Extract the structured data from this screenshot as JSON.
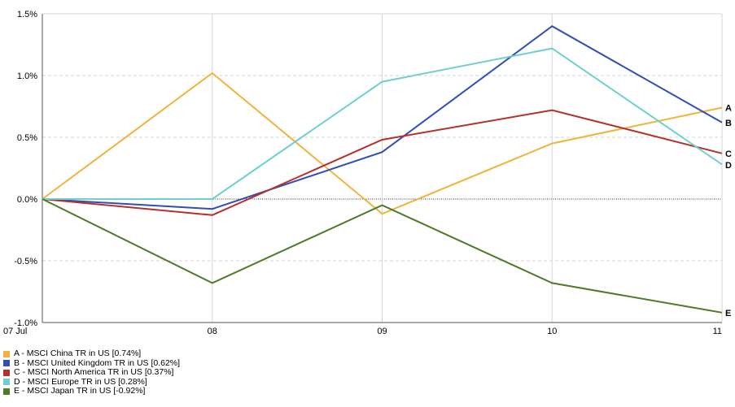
{
  "chart_data": {
    "type": "line",
    "x": [
      "07 Jul",
      "08",
      "09",
      "10",
      "11"
    ],
    "ylim": [
      -1.0,
      1.5
    ],
    "yticks": [
      "1.5%",
      "1.0%",
      "0.5%",
      "0.0%",
      "-0.5%",
      "-1.0%"
    ],
    "ytick_values": [
      1.5,
      1.0,
      0.5,
      0.0,
      -0.5,
      -1.0
    ],
    "grid": true,
    "legend_placement": "bottom-left",
    "series": [
      {
        "name": "A - MSCI China TR in US [0.74%]",
        "label": "A",
        "color": "#f0b43c",
        "values": [
          0.0,
          1.02,
          -0.12,
          0.45,
          0.74
        ]
      },
      {
        "name": "B - MSCI United Kingdom TR in US [0.62%]",
        "label": "B",
        "color": "#2f4fb5",
        "values": [
          0.0,
          -0.08,
          0.38,
          1.4,
          0.62
        ]
      },
      {
        "name": "C - MSCI North America TR in US [0.37%]",
        "label": "C",
        "color": "#b5302b",
        "values": [
          0.0,
          -0.13,
          0.48,
          0.72,
          0.37
        ]
      },
      {
        "name": "D - MSCI Europe TR in US [0.28%]",
        "label": "D",
        "color": "#6fcfcf",
        "values": [
          0.0,
          0.0,
          0.95,
          1.22,
          0.28
        ]
      },
      {
        "name": "E - MSCI Japan TR in US [-0.92%]",
        "label": "E",
        "color": "#4e7a2a",
        "values": [
          0.0,
          -0.68,
          -0.05,
          -0.68,
          -0.92
        ]
      }
    ]
  }
}
